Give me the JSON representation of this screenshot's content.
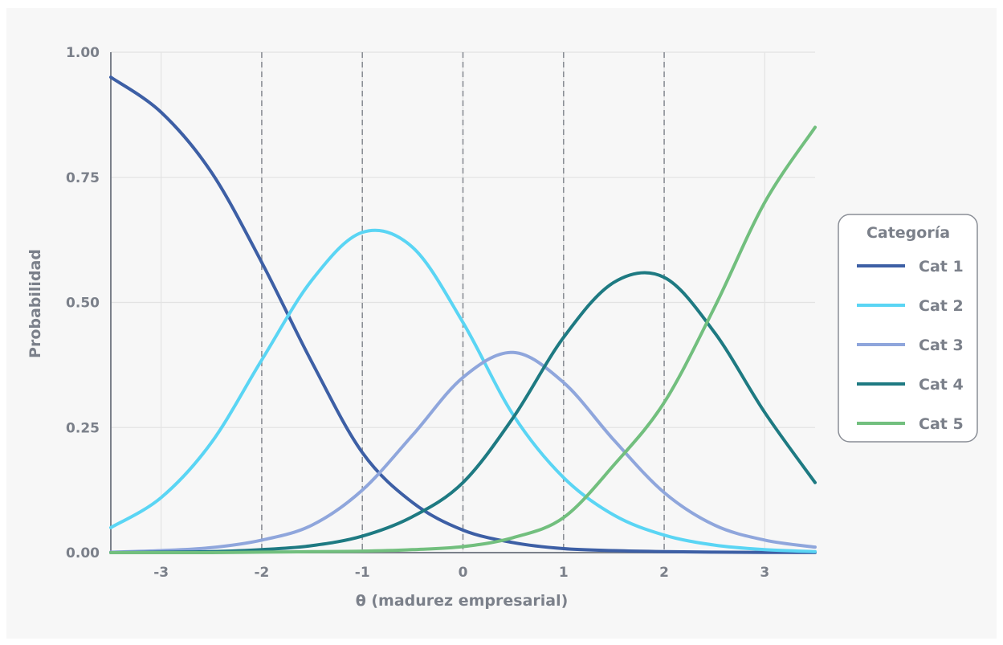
{
  "chart_data": {
    "type": "line",
    "title": "",
    "xlabel": "θ (madurez empresarial)",
    "ylabel": "Probabilidad",
    "xlim": [
      -3.5,
      3.5
    ],
    "ylim": [
      0,
      1
    ],
    "x_ticks": [
      -3,
      -2,
      -1,
      0,
      1,
      2,
      3
    ],
    "x_tick_labels": [
      "-3",
      "-2",
      "-1",
      "0",
      "1",
      "2",
      "3"
    ],
    "y_ticks": [
      0,
      0.25,
      0.5,
      0.75,
      1
    ],
    "y_tick_labels": [
      "0.00",
      "0.25",
      "0.50",
      "0.75",
      "1.00"
    ],
    "grid": true,
    "vertical_reference_lines": [
      -2,
      -1,
      0,
      1,
      2
    ],
    "legend": {
      "title": "Categoría",
      "placement": "right"
    },
    "x": [
      -3.5,
      -3.0,
      -2.5,
      -2.0,
      -1.5,
      -1.0,
      -0.5,
      0.0,
      0.5,
      1.0,
      1.5,
      2.0,
      2.5,
      3.0,
      3.5
    ],
    "series": [
      {
        "name": "Cat 1",
        "color": "#3d5fa5",
        "values": [
          0.95,
          0.88,
          0.76,
          0.58,
          0.38,
          0.2,
          0.1,
          0.045,
          0.02,
          0.008,
          0.004,
          0.002,
          0.001,
          0.0005,
          0.0002
        ]
      },
      {
        "name": "Cat 2",
        "color": "#5ad5f4",
        "values": [
          0.05,
          0.11,
          0.22,
          0.385,
          0.545,
          0.64,
          0.61,
          0.46,
          0.275,
          0.15,
          0.075,
          0.035,
          0.015,
          0.006,
          0.002
        ]
      },
      {
        "name": "Cat 3",
        "color": "#8fa6dc",
        "values": [
          0.001,
          0.004,
          0.01,
          0.025,
          0.055,
          0.125,
          0.235,
          0.35,
          0.4,
          0.34,
          0.225,
          0.12,
          0.055,
          0.025,
          0.011
        ]
      },
      {
        "name": "Cat 4",
        "color": "#1e7a82",
        "values": [
          0.0,
          0.001,
          0.002,
          0.006,
          0.014,
          0.033,
          0.072,
          0.14,
          0.27,
          0.43,
          0.54,
          0.55,
          0.44,
          0.28,
          0.14
        ]
      },
      {
        "name": "Cat 5",
        "color": "#72bf7e",
        "values": [
          0.0,
          0.0,
          0.0,
          0.001,
          0.002,
          0.003,
          0.006,
          0.012,
          0.03,
          0.07,
          0.175,
          0.3,
          0.49,
          0.7,
          0.85
        ]
      }
    ]
  }
}
